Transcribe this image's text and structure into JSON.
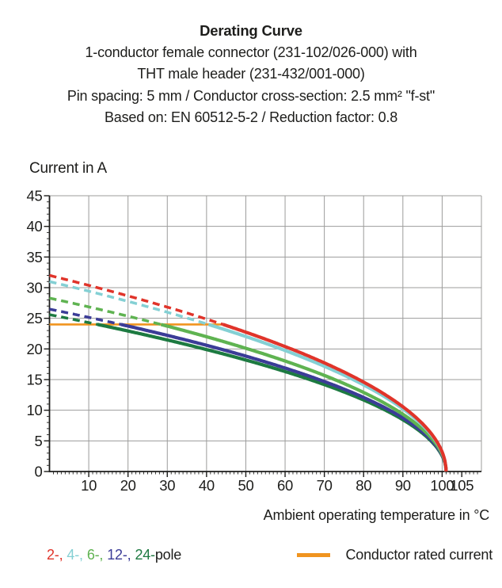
{
  "header": {
    "title": "Derating Curve",
    "subtitle_lines": [
      "1-conductor female connector (231-102/026-000) with",
      "THT male header (231-432/001-000)",
      "Pin spacing: 5 mm / Conductor cross-section: 2.5 mm² \"f-st\"",
      "Based on: EN 60512-5-2 / Reduction factor: 0.8"
    ]
  },
  "chart_data": {
    "type": "line",
    "title": "Derating Curve",
    "ylabel": "Current in A",
    "xlabel": "Ambient operating temperature in °C",
    "xlim": [
      0,
      110
    ],
    "ylim": [
      0,
      45
    ],
    "x_ticks": [
      10,
      20,
      30,
      40,
      50,
      60,
      70,
      80,
      90,
      100,
      105
    ],
    "y_ticks": [
      0,
      5,
      10,
      15,
      20,
      25,
      30,
      35,
      40,
      45
    ],
    "x_grid_step": 10,
    "y_grid_step": 5,
    "x_minor_tick_step": 1,
    "y_minor_tick_step": 1,
    "grid": true,
    "grid_color": "#9c9c9b",
    "axis_color": "#1d1d1b",
    "rated_current": {
      "label": "Conductor rated current",
      "value": 24,
      "t_start": 0,
      "t_end": 44.2,
      "color": "#f0941f"
    },
    "note": "Curves are dashed while above the conductor rated current (24 A) and solid below it; model I(T)=i0*sqrt(1-T/t_end)",
    "series": [
      {
        "name": "24-pole",
        "color": "#1d7a41",
        "i0": 25.6,
        "t_end": 101,
        "t_solid_from": 12.2,
        "points": [
          [
            0,
            25.6
          ],
          [
            10,
            24.3
          ],
          [
            20,
            22.9
          ],
          [
            30,
            21.5
          ],
          [
            40,
            19.9
          ],
          [
            50,
            18.2
          ],
          [
            60,
            16.3
          ],
          [
            70,
            14.2
          ],
          [
            80,
            11.7
          ],
          [
            90,
            8.4
          ],
          [
            100,
            2.5
          ],
          [
            101,
            0
          ]
        ]
      },
      {
        "name": "12-pole",
        "color": "#3b3c97",
        "i0": 26.5,
        "t_end": 101,
        "t_solid_from": 18.2,
        "points": [
          [
            0,
            26.5
          ],
          [
            10,
            25.2
          ],
          [
            20,
            23.7
          ],
          [
            30,
            22.2
          ],
          [
            40,
            20.6
          ],
          [
            50,
            18.8
          ],
          [
            60,
            16.9
          ],
          [
            70,
            14.7
          ],
          [
            80,
            12.1
          ],
          [
            90,
            8.7
          ],
          [
            100,
            2.6
          ],
          [
            101,
            0
          ]
        ]
      },
      {
        "name": "6-pole",
        "color": "#5fb351",
        "i0": 28.3,
        "t_end": 101,
        "t_solid_from": 28.4,
        "points": [
          [
            0,
            28.3
          ],
          [
            10,
            26.9
          ],
          [
            20,
            25.3
          ],
          [
            30,
            23.7
          ],
          [
            40,
            22.0
          ],
          [
            50,
            20.1
          ],
          [
            60,
            18.0
          ],
          [
            70,
            15.7
          ],
          [
            80,
            12.9
          ],
          [
            90,
            9.3
          ],
          [
            100,
            2.8
          ],
          [
            101,
            0
          ]
        ]
      },
      {
        "name": "4-pole",
        "color": "#84d0d4",
        "i0": 31,
        "t_end": 101,
        "t_solid_from": 40.5,
        "points": [
          [
            0,
            31
          ],
          [
            10,
            29.4
          ],
          [
            20,
            27.8
          ],
          [
            30,
            26.0
          ],
          [
            40,
            24.1
          ],
          [
            50,
            22.0
          ],
          [
            60,
            19.8
          ],
          [
            70,
            17.2
          ],
          [
            80,
            14.1
          ],
          [
            90,
            10.2
          ],
          [
            100,
            3.1
          ],
          [
            101,
            0
          ]
        ]
      },
      {
        "name": "2-pole",
        "color": "#e0342a",
        "i0": 32,
        "t_end": 101,
        "t_solid_from": 44.2,
        "points": [
          [
            0,
            32
          ],
          [
            10,
            30.4
          ],
          [
            20,
            28.7
          ],
          [
            30,
            26.8
          ],
          [
            40,
            24.9
          ],
          [
            50,
            22.7
          ],
          [
            60,
            20.4
          ],
          [
            70,
            17.7
          ],
          [
            80,
            14.6
          ],
          [
            90,
            10.6
          ],
          [
            100,
            3.2
          ],
          [
            101,
            0
          ]
        ]
      }
    ]
  },
  "legend": {
    "pole_items": [
      {
        "text": "2-,",
        "color": "#e0342a"
      },
      {
        "text": "4-,",
        "color": "#84d0d4"
      },
      {
        "text": "6-,",
        "color": "#5fb351"
      },
      {
        "text": "12-,",
        "color": "#3b3c97"
      },
      {
        "text": "24-",
        "color": "#1d7a41"
      }
    ],
    "pole_suffix": "pole",
    "rated_label": "Conductor rated current",
    "rated_color": "#f0941f"
  }
}
